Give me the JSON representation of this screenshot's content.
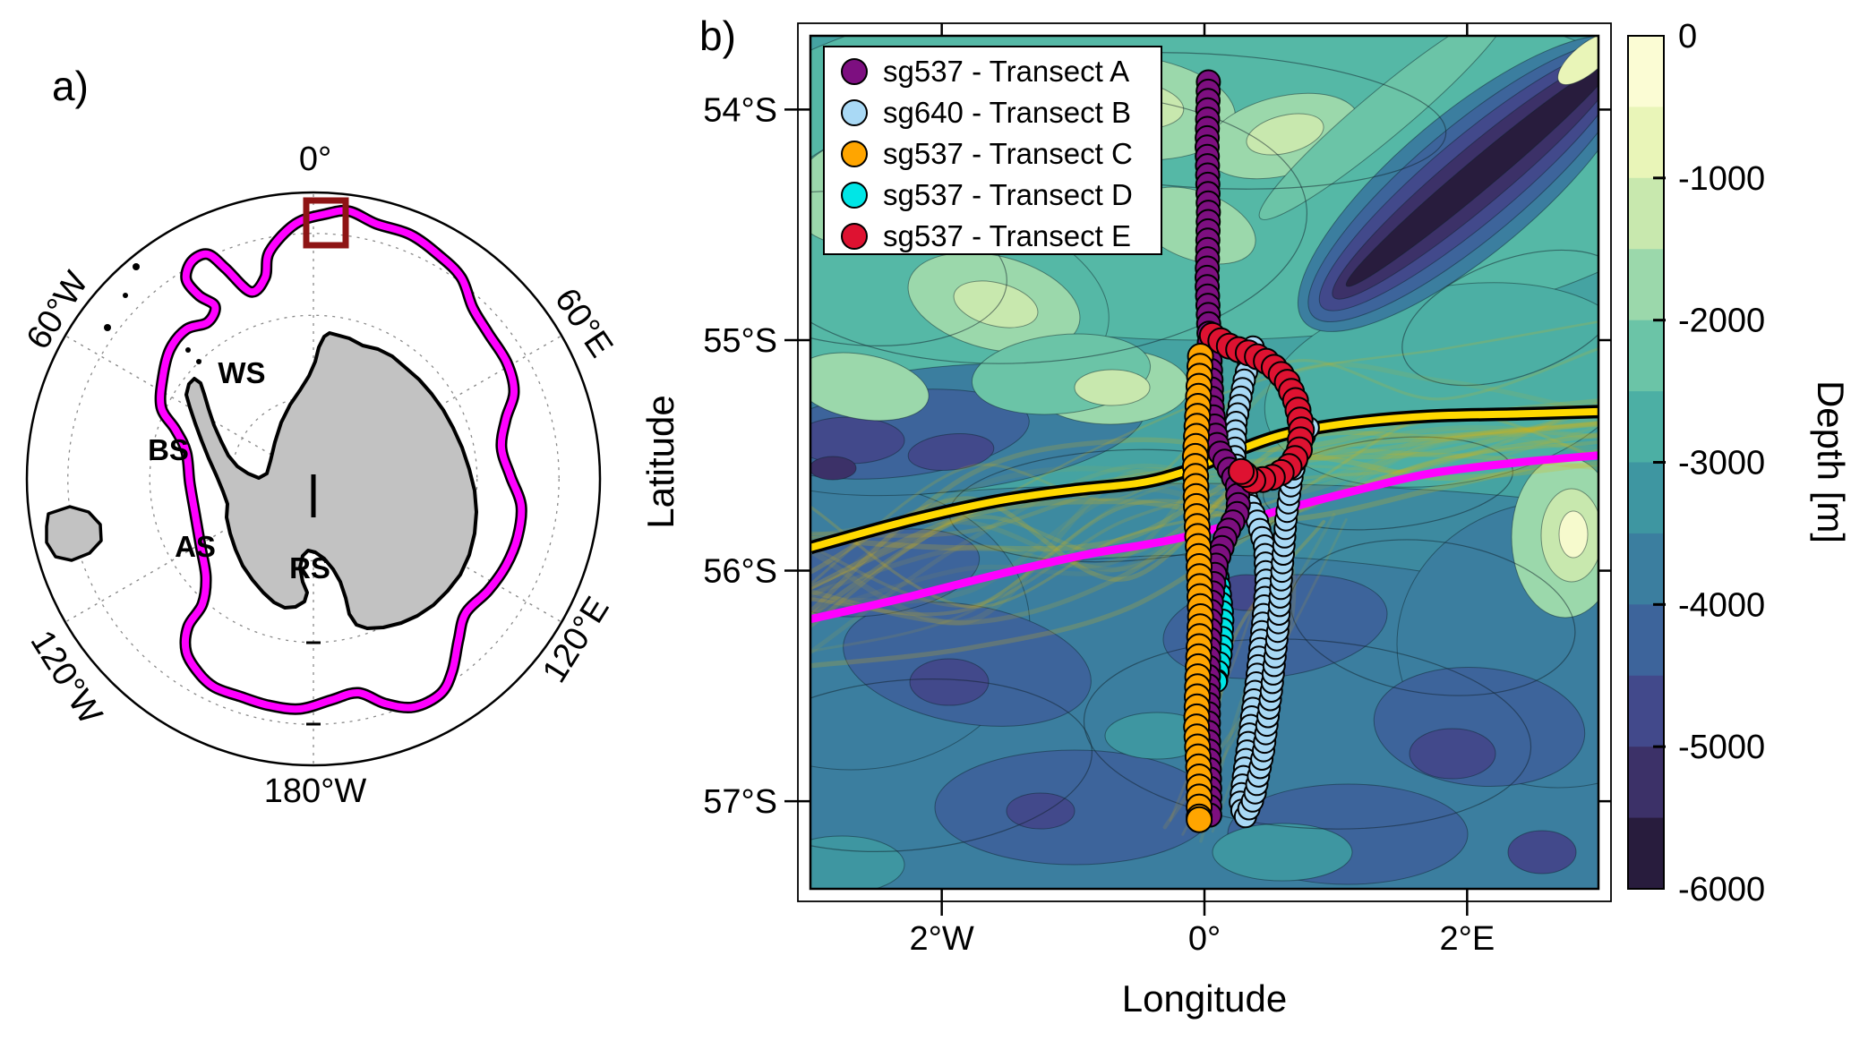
{
  "panel_a": {
    "label": "a)",
    "meridian_labels": [
      "0°",
      "60°E",
      "120°E",
      "180°W",
      "120°W",
      "60°W"
    ],
    "sea_labels": [
      "WS",
      "BS",
      "AS",
      "RS"
    ],
    "colors": {
      "front": "#ff00ff",
      "front_casing": "#000000",
      "study_box": "#8e1414",
      "land": "#c2c2c2",
      "coast": "#000000"
    }
  },
  "panel_b": {
    "label": "b)",
    "xlabel": "Longitude",
    "ylabel": "Latitude",
    "x_tick_labels": [
      "2°W",
      "0°",
      "2°E"
    ],
    "y_tick_labels": [
      "54°S",
      "55°S",
      "56°S",
      "57°S"
    ],
    "legend": [
      {
        "glider": "sg537",
        "transect": "A",
        "label": "sg537 - Transect A",
        "color": "#7d0f80"
      },
      {
        "glider": "sg640",
        "transect": "B",
        "label": "sg640 - Transect B",
        "color": "#a9d9f5"
      },
      {
        "glider": "sg537",
        "transect": "C",
        "label": "sg537 - Transect C",
        "color": "#ffa500"
      },
      {
        "glider": "sg537",
        "transect": "D",
        "label": "sg537 - Transect D",
        "color": "#00e6e6"
      },
      {
        "glider": "sg537",
        "transect": "E",
        "label": "sg537 - Transect E",
        "color": "#de1231"
      }
    ],
    "colorbar": {
      "title": "Depth [m]",
      "tick_labels": [
        "0",
        "-1000",
        "-2000",
        "-3000",
        "-4000",
        "-5000",
        "-6000"
      ]
    }
  },
  "chart_data": {
    "type": "map",
    "projection": "lonlat",
    "lon_range": [
      -3,
      3
    ],
    "lat_range": [
      -57.38,
      -53.68
    ],
    "x_ticks": [
      {
        "lon": -2,
        "label": "2°W"
      },
      {
        "lon": 0,
        "label": "0°"
      },
      {
        "lon": 2,
        "label": "2°E"
      }
    ],
    "y_ticks": [
      {
        "lat": -54,
        "label": "54°S"
      },
      {
        "lat": -55,
        "label": "55°S"
      },
      {
        "lat": -56,
        "label": "56°S"
      },
      {
        "lat": -57,
        "label": "57°S"
      }
    ],
    "depth_colorbar": {
      "label": "Depth [m]",
      "ticks": [
        0,
        -1000,
        -2000,
        -3000,
        -4000,
        -5000,
        -6000
      ],
      "band_step_m": 500,
      "band_colors": [
        "#fbfcd4",
        "#e9f5b8",
        "#c8e8ae",
        "#9bd8ab",
        "#6bc4a7",
        "#4cafa4",
        "#3e96a1",
        "#3b7e9f",
        "#3d649b",
        "#42498b",
        "#3c3168",
        "#281c3d"
      ]
    },
    "tracks": [
      {
        "name": "Transect A",
        "glider": "sg537",
        "color": "#7d0f80",
        "points": [
          [
            0.03,
            -53.88
          ],
          [
            0.02,
            -54.15
          ],
          [
            0.03,
            -54.45
          ],
          [
            0.02,
            -54.75
          ],
          [
            0.04,
            -55.05
          ],
          [
            0.06,
            -55.3
          ],
          [
            0.1,
            -55.47
          ],
          [
            0.18,
            -55.55
          ],
          [
            0.25,
            -55.63
          ],
          [
            0.26,
            -55.74
          ],
          [
            0.17,
            -55.84
          ],
          [
            0.09,
            -55.97
          ],
          [
            0.05,
            -56.15
          ],
          [
            0.03,
            -56.4
          ],
          [
            0.03,
            -56.7
          ],
          [
            0.04,
            -56.95
          ],
          [
            0.04,
            -57.06
          ]
        ]
      },
      {
        "name": "Transect B",
        "glider": "sg640",
        "color": "#a9d9f5",
        "points": [
          [
            0.37,
            -55.03
          ],
          [
            0.3,
            -55.18
          ],
          [
            0.24,
            -55.36
          ],
          [
            0.23,
            -55.52
          ],
          [
            0.3,
            -55.66
          ],
          [
            0.4,
            -55.78
          ],
          [
            0.46,
            -55.9
          ],
          [
            0.47,
            -56.06
          ],
          [
            0.44,
            -56.25
          ],
          [
            0.4,
            -56.46
          ],
          [
            0.35,
            -56.68
          ],
          [
            0.3,
            -56.88
          ],
          [
            0.27,
            -57.02
          ],
          [
            0.31,
            -57.07
          ],
          [
            0.38,
            -56.98
          ],
          [
            0.45,
            -56.78
          ],
          [
            0.51,
            -56.52
          ],
          [
            0.56,
            -56.25
          ],
          [
            0.59,
            -56.0
          ],
          [
            0.62,
            -55.78
          ],
          [
            0.67,
            -55.58
          ],
          [
            0.74,
            -55.44
          ],
          [
            0.79,
            -55.38
          ]
        ]
      },
      {
        "name": "Transect C",
        "glider": "sg537",
        "color": "#ffa500",
        "points": [
          [
            -0.03,
            -55.07
          ],
          [
            -0.05,
            -55.3
          ],
          [
            -0.07,
            -55.52
          ],
          [
            -0.06,
            -55.75
          ],
          [
            -0.04,
            -55.98
          ],
          [
            -0.03,
            -56.2
          ],
          [
            -0.05,
            -56.45
          ],
          [
            -0.06,
            -56.68
          ],
          [
            -0.04,
            -56.9
          ],
          [
            -0.04,
            -57.08
          ]
        ]
      },
      {
        "name": "Transect D",
        "glider": "sg537",
        "color": "#00e6e6",
        "points": [
          [
            0.07,
            -55.92
          ],
          [
            0.11,
            -56.05
          ],
          [
            0.14,
            -56.2
          ],
          [
            0.13,
            -56.35
          ],
          [
            0.09,
            -56.48
          ]
        ]
      },
      {
        "name": "Transect E",
        "glider": "sg537",
        "color": "#de1231",
        "points": [
          [
            0.06,
            -54.98
          ],
          [
            0.2,
            -55.03
          ],
          [
            0.36,
            -55.06
          ],
          [
            0.5,
            -55.1
          ],
          [
            0.62,
            -55.17
          ],
          [
            0.7,
            -55.27
          ],
          [
            0.74,
            -55.38
          ],
          [
            0.72,
            -55.49
          ],
          [
            0.63,
            -55.56
          ],
          [
            0.5,
            -55.6
          ],
          [
            0.37,
            -55.61
          ],
          [
            0.28,
            -55.57
          ]
        ]
      }
    ],
    "front_lines": [
      {
        "name": "mean front (yellow, black casing)",
        "stroke": "#ffd900",
        "casing": "#000000",
        "points": [
          [
            -3.0,
            -55.9
          ],
          [
            -2.3,
            -55.79
          ],
          [
            -1.6,
            -55.7
          ],
          [
            -1.0,
            -55.65
          ],
          [
            -0.5,
            -55.62
          ],
          [
            -0.15,
            -55.57
          ],
          [
            0.2,
            -55.49
          ],
          [
            0.6,
            -55.41
          ],
          [
            1.1,
            -55.36
          ],
          [
            1.7,
            -55.33
          ],
          [
            2.4,
            -55.32
          ],
          [
            3.0,
            -55.31
          ]
        ]
      },
      {
        "name": "front (magenta)",
        "stroke": "#ff00ff",
        "points": [
          [
            -3.0,
            -56.21
          ],
          [
            -2.3,
            -56.12
          ],
          [
            -1.6,
            -56.02
          ],
          [
            -0.9,
            -55.93
          ],
          [
            -0.2,
            -55.86
          ],
          [
            0.5,
            -55.75
          ],
          [
            1.1,
            -55.66
          ],
          [
            1.7,
            -55.58
          ],
          [
            2.4,
            -55.53
          ],
          [
            3.0,
            -55.5
          ]
        ]
      }
    ],
    "front_ensemble": {
      "color": "#d9b411",
      "style": "translucent spaghetti strands along the fronts"
    }
  }
}
